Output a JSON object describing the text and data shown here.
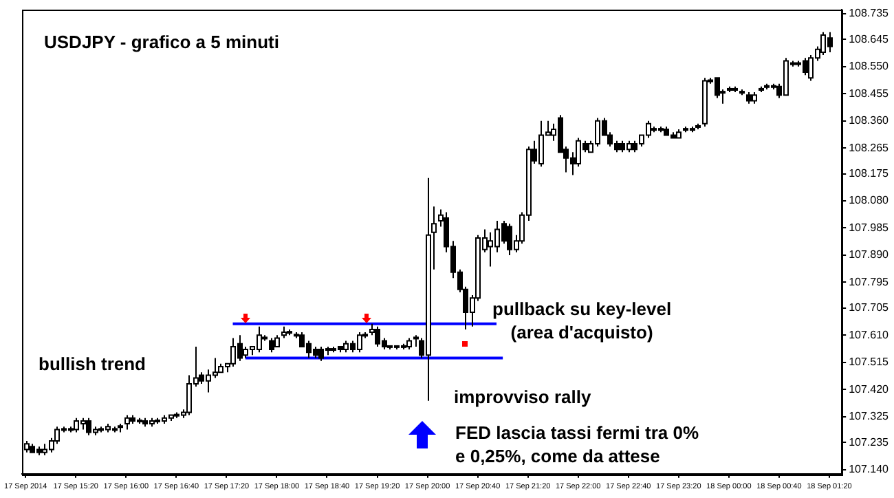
{
  "chart_data": {
    "type": "candlestick",
    "title": "USDJPY - grafico a 5 minuti",
    "annotations": [
      "bullish trend",
      "pullback su key-level\n(area d'acquisto)",
      "improvviso rally",
      "FED lascia tassi fermi tra 0%\ne 0,25%, come da attese"
    ],
    "x": [
      "2014-09-17T14:40",
      "2014-09-17T14:45",
      "2014-09-17T14:50",
      "2014-09-17T14:55",
      "2014-09-17T15:00",
      "2014-09-17T15:05",
      "2014-09-17T15:10",
      "2014-09-17T15:15",
      "2014-09-17T15:20",
      "2014-09-17T15:25",
      "2014-09-17T15:30",
      "2014-09-17T15:35",
      "2014-09-17T15:40",
      "2014-09-17T15:45",
      "2014-09-17T15:50",
      "2014-09-17T15:55",
      "2014-09-17T16:00",
      "2014-09-17T16:05",
      "2014-09-17T16:10",
      "2014-09-17T16:15",
      "2014-09-17T16:20",
      "2014-09-17T16:25",
      "2014-09-17T16:30",
      "2014-09-17T16:35",
      "2014-09-17T16:40",
      "2014-09-17T16:45",
      "2014-09-17T16:50",
      "2014-09-17T16:55",
      "2014-09-17T17:00",
      "2014-09-17T17:05",
      "2014-09-17T17:10",
      "2014-09-17T17:15",
      "2014-09-17T17:20",
      "2014-09-17T17:25",
      "2014-09-17T17:30",
      "2014-09-17T17:35",
      "2014-09-17T17:40",
      "2014-09-17T17:45",
      "2014-09-17T17:50",
      "2014-09-17T17:55",
      "2014-09-17T18:00",
      "2014-09-17T18:05",
      "2014-09-17T18:10",
      "2014-09-17T18:15",
      "2014-09-17T18:20",
      "2014-09-17T18:25",
      "2014-09-17T18:30",
      "2014-09-17T18:35",
      "2014-09-17T18:40",
      "2014-09-17T18:45",
      "2014-09-17T18:50",
      "2014-09-17T18:55",
      "2014-09-17T19:00",
      "2014-09-17T19:05",
      "2014-09-17T19:10",
      "2014-09-17T19:15",
      "2014-09-17T19:20",
      "2014-09-17T19:25",
      "2014-09-17T19:30",
      "2014-09-17T19:35",
      "2014-09-17T19:40",
      "2014-09-17T19:45",
      "2014-09-17T19:50",
      "2014-09-17T19:55",
      "2014-09-17T20:00",
      "2014-09-17T20:05",
      "2014-09-17T20:10",
      "2014-09-17T20:15",
      "2014-09-17T20:20",
      "2014-09-17T20:25",
      "2014-09-17T20:30",
      "2014-09-17T20:35",
      "2014-09-17T20:40",
      "2014-09-17T20:45",
      "2014-09-17T20:50",
      "2014-09-17T20:55",
      "2014-09-17T21:00",
      "2014-09-17T21:05",
      "2014-09-17T21:10",
      "2014-09-17T21:15",
      "2014-09-17T21:20",
      "2014-09-17T21:25",
      "2014-09-17T21:30",
      "2014-09-17T21:35",
      "2014-09-17T21:40",
      "2014-09-17T21:45",
      "2014-09-17T21:50",
      "2014-09-17T21:55",
      "2014-09-17T22:00",
      "2014-09-17T22:05",
      "2014-09-17T22:10",
      "2014-09-17T22:15",
      "2014-09-17T22:20",
      "2014-09-17T22:25",
      "2014-09-17T22:30",
      "2014-09-17T22:35",
      "2014-09-17T22:40",
      "2014-09-17T22:45",
      "2014-09-17T22:50",
      "2014-09-17T22:55",
      "2014-09-17T23:00",
      "2014-09-17T23:05",
      "2014-09-17T23:10",
      "2014-09-17T23:15",
      "2014-09-17T23:20",
      "2014-09-17T23:25",
      "2014-09-17T23:30",
      "2014-09-17T23:35",
      "2014-09-17T23:40",
      "2014-09-17T23:45",
      "2014-09-17T23:50",
      "2014-09-17T23:55",
      "2014-09-18T00:00",
      "2014-09-18T00:05",
      "2014-09-18T00:10",
      "2014-09-18T00:15",
      "2014-09-18T00:20",
      "2014-09-18T00:25",
      "2014-09-18T00:30",
      "2014-09-18T00:35",
      "2014-09-18T00:40",
      "2014-09-18T00:45",
      "2014-09-18T00:50",
      "2014-09-18T00:55",
      "2014-09-18T01:00",
      "2014-09-18T01:05",
      "2014-09-18T01:10",
      "2014-09-18T01:15",
      "2014-09-18T01:20"
    ],
    "ohlc": [
      [
        107.21,
        107.24,
        107.2,
        107.23
      ],
      [
        107.22,
        107.23,
        107.2,
        107.2
      ],
      [
        107.21,
        107.22,
        107.19,
        107.2
      ],
      [
        107.2,
        107.23,
        107.19,
        107.21
      ],
      [
        107.21,
        107.25,
        107.2,
        107.24
      ],
      [
        107.24,
        107.29,
        107.23,
        107.28
      ],
      [
        107.28,
        107.29,
        107.27,
        107.28
      ],
      [
        107.28,
        107.29,
        107.27,
        107.28
      ],
      [
        107.28,
        107.32,
        107.27,
        107.31
      ],
      [
        107.3,
        107.32,
        107.28,
        107.31
      ],
      [
        107.31,
        107.32,
        107.26,
        107.27
      ],
      [
        107.27,
        107.29,
        107.26,
        107.28
      ],
      [
        107.28,
        107.29,
        107.27,
        107.28
      ],
      [
        107.28,
        107.3,
        107.27,
        107.29
      ],
      [
        107.28,
        107.29,
        107.27,
        107.28
      ],
      [
        107.29,
        107.3,
        107.27,
        107.29
      ],
      [
        107.3,
        107.33,
        107.28,
        107.32
      ],
      [
        107.32,
        107.33,
        107.3,
        107.31
      ],
      [
        107.31,
        107.32,
        107.3,
        107.31
      ],
      [
        107.31,
        107.32,
        107.29,
        107.3
      ],
      [
        107.3,
        107.32,
        107.29,
        107.31
      ],
      [
        107.31,
        107.32,
        107.3,
        107.31
      ],
      [
        107.31,
        107.33,
        107.3,
        107.32
      ],
      [
        107.32,
        107.33,
        107.31,
        107.33
      ],
      [
        107.33,
        107.34,
        107.32,
        107.33
      ],
      [
        107.33,
        107.35,
        107.32,
        107.34
      ],
      [
        107.34,
        107.47,
        107.33,
        107.44
      ],
      [
        107.44,
        107.57,
        107.43,
        107.46
      ],
      [
        107.47,
        107.48,
        107.44,
        107.45
      ],
      [
        107.45,
        107.49,
        107.41,
        107.47
      ],
      [
        107.47,
        107.53,
        107.46,
        107.48
      ],
      [
        107.48,
        107.51,
        107.48,
        107.5
      ],
      [
        107.5,
        107.51,
        107.48,
        107.51
      ],
      [
        107.51,
        107.6,
        107.5,
        107.57
      ],
      [
        107.58,
        107.61,
        107.52,
        107.53
      ],
      [
        107.54,
        107.57,
        107.53,
        107.56
      ],
      [
        107.56,
        107.57,
        107.54,
        107.57
      ],
      [
        107.56,
        107.64,
        107.55,
        107.61
      ],
      [
        107.6,
        107.61,
        107.59,
        107.6
      ],
      [
        107.59,
        107.6,
        107.55,
        107.56
      ],
      [
        107.57,
        107.61,
        107.57,
        107.6
      ],
      [
        107.61,
        107.64,
        107.6,
        107.62
      ],
      [
        107.62,
        107.63,
        107.61,
        107.62
      ],
      [
        107.61,
        107.62,
        107.6,
        107.61
      ],
      [
        107.61,
        107.62,
        107.57,
        107.57
      ],
      [
        107.58,
        107.59,
        107.53,
        107.55
      ],
      [
        107.56,
        107.57,
        107.53,
        107.54
      ],
      [
        107.56,
        107.57,
        107.52,
        107.53
      ],
      [
        107.56,
        107.57,
        107.54,
        107.56
      ],
      [
        107.56,
        107.57,
        107.55,
        107.56
      ],
      [
        107.57,
        107.57,
        107.55,
        107.56
      ],
      [
        107.56,
        107.59,
        107.55,
        107.58
      ],
      [
        107.58,
        107.59,
        107.55,
        107.56
      ],
      [
        107.56,
        107.62,
        107.55,
        107.61
      ],
      [
        107.61,
        107.62,
        107.6,
        107.61
      ],
      [
        107.62,
        107.65,
        107.61,
        107.63
      ],
      [
        107.63,
        107.64,
        107.57,
        107.58
      ],
      [
        107.59,
        107.6,
        107.56,
        107.57
      ],
      [
        107.57,
        107.57,
        107.56,
        107.57
      ],
      [
        107.57,
        107.57,
        107.56,
        107.57
      ],
      [
        107.57,
        107.58,
        107.56,
        107.57
      ],
      [
        107.57,
        107.6,
        107.56,
        107.59
      ],
      [
        107.6,
        107.61,
        107.57,
        107.6
      ],
      [
        107.59,
        107.6,
        107.53,
        107.54
      ],
      [
        107.54,
        108.16,
        107.38,
        107.96
      ],
      [
        107.97,
        108.06,
        107.84,
        108.0
      ],
      [
        108.01,
        108.05,
        107.99,
        108.03
      ],
      [
        108.02,
        108.04,
        107.9,
        107.92
      ],
      [
        107.92,
        107.94,
        107.81,
        107.83
      ],
      [
        107.83,
        107.84,
        107.76,
        107.77
      ],
      [
        107.77,
        107.78,
        107.63,
        107.69
      ],
      [
        107.69,
        107.75,
        107.64,
        107.74
      ],
      [
        107.74,
        107.96,
        107.73,
        107.95
      ],
      [
        107.91,
        107.98,
        107.9,
        107.95
      ],
      [
        107.92,
        107.97,
        107.85,
        107.94
      ],
      [
        107.92,
        108.01,
        107.9,
        107.98
      ],
      [
        108.0,
        108.01,
        107.93,
        107.94
      ],
      [
        107.99,
        108.0,
        107.89,
        107.91
      ],
      [
        107.91,
        107.96,
        107.9,
        107.94
      ],
      [
        107.94,
        108.04,
        107.93,
        108.03
      ],
      [
        108.03,
        108.27,
        108.01,
        108.26
      ],
      [
        108.26,
        108.29,
        108.21,
        108.22
      ],
      [
        108.21,
        108.36,
        108.2,
        108.31
      ],
      [
        108.31,
        108.36,
        108.31,
        108.32
      ],
      [
        108.31,
        108.35,
        108.29,
        108.33
      ],
      [
        108.37,
        108.38,
        108.25,
        108.25
      ],
      [
        108.26,
        108.27,
        108.18,
        108.23
      ],
      [
        108.23,
        108.25,
        108.17,
        108.21
      ],
      [
        108.21,
        108.3,
        108.2,
        108.29
      ],
      [
        108.28,
        108.29,
        108.25,
        108.26
      ],
      [
        108.25,
        108.29,
        108.25,
        108.28
      ],
      [
        108.28,
        108.37,
        108.27,
        108.36
      ],
      [
        108.36,
        108.37,
        108.31,
        108.31
      ],
      [
        108.31,
        108.32,
        108.27,
        108.28
      ],
      [
        108.28,
        108.29,
        108.25,
        108.26
      ],
      [
        108.28,
        108.29,
        108.25,
        108.26
      ],
      [
        108.26,
        108.29,
        108.25,
        108.28
      ],
      [
        108.28,
        108.29,
        108.25,
        108.26
      ],
      [
        108.28,
        108.31,
        108.27,
        108.31
      ],
      [
        108.31,
        108.36,
        108.3,
        108.35
      ],
      [
        108.33,
        108.34,
        108.32,
        108.33
      ],
      [
        108.33,
        108.34,
        108.32,
        108.33
      ],
      [
        108.33,
        108.34,
        108.31,
        108.31
      ],
      [
        108.31,
        108.32,
        108.3,
        108.3
      ],
      [
        108.3,
        108.33,
        108.3,
        108.32
      ],
      [
        108.33,
        108.34,
        108.32,
        108.33
      ],
      [
        108.33,
        108.34,
        108.32,
        108.33
      ],
      [
        108.34,
        108.35,
        108.33,
        108.34
      ],
      [
        108.35,
        108.51,
        108.34,
        108.5
      ],
      [
        108.5,
        108.51,
        108.49,
        108.5
      ],
      [
        108.51,
        108.51,
        108.44,
        108.45
      ],
      [
        108.46,
        108.47,
        108.42,
        108.46
      ],
      [
        108.47,
        108.48,
        108.46,
        108.47
      ],
      [
        108.47,
        108.48,
        108.46,
        108.47
      ],
      [
        108.46,
        108.47,
        108.45,
        108.46
      ],
      [
        108.45,
        108.46,
        108.42,
        108.43
      ],
      [
        108.43,
        108.46,
        108.42,
        108.45
      ],
      [
        108.47,
        108.48,
        108.46,
        108.47
      ],
      [
        108.48,
        108.49,
        108.47,
        108.48
      ],
      [
        108.48,
        108.49,
        108.47,
        108.48
      ],
      [
        108.48,
        108.49,
        108.44,
        108.45
      ],
      [
        108.45,
        108.58,
        108.45,
        108.57
      ],
      [
        108.56,
        108.57,
        108.55,
        108.56
      ],
      [
        108.56,
        108.57,
        108.55,
        108.56
      ],
      [
        108.57,
        108.58,
        108.52,
        108.53
      ],
      [
        108.51,
        108.59,
        108.5,
        108.58
      ],
      [
        108.58,
        108.62,
        108.57,
        108.61
      ],
      [
        108.6,
        108.67,
        108.59,
        108.66
      ],
      [
        108.65,
        108.67,
        108.6,
        108.62
      ]
    ],
    "series": [
      {
        "type": "line",
        "x": [
          "2014-09-17T17:25",
          "2014-09-17T20:55"
        ],
        "values": [
          107.65,
          107.65
        ],
        "color": "#0000ff"
      },
      {
        "type": "line",
        "x": [
          "2014-09-17T17:35",
          "2014-09-17T21:00"
        ],
        "values": [
          107.53,
          107.53
        ],
        "color": "#0000ff"
      }
    ],
    "xlim": [
      "2014-09-17T14:37",
      "2014-09-18T01:30"
    ],
    "xticks": [
      {
        "value": "2014-09-17T14:40",
        "label": "17 Sep 2014"
      },
      {
        "value": "2014-09-17T15:20",
        "label": "17 Sep 15:20"
      },
      {
        "value": "2014-09-17T16:00",
        "label": "17 Sep 16:00"
      },
      {
        "value": "2014-09-17T16:40",
        "label": "17 Sep 16:40"
      },
      {
        "value": "2014-09-17T17:20",
        "label": "17 Sep 17:20"
      },
      {
        "value": "2014-09-17T18:00",
        "label": "17 Sep 18:00"
      },
      {
        "value": "2014-09-17T18:40",
        "label": "17 Sep 18:40"
      },
      {
        "value": "2014-09-17T19:20",
        "label": "17 Sep 19:20"
      },
      {
        "value": "2014-09-17T20:00",
        "label": "17 Sep 20:00"
      },
      {
        "value": "2014-09-17T20:40",
        "label": "17 Sep 20:40"
      },
      {
        "value": "2014-09-17T21:20",
        "label": "17 Sep 21:20"
      },
      {
        "value": "2014-09-17T22:00",
        "label": "17 Sep 22:00"
      },
      {
        "value": "2014-09-17T22:40",
        "label": "17 Sep 22:40"
      },
      {
        "value": "2014-09-17T23:20",
        "label": "17 Sep 23:20"
      },
      {
        "value": "2014-09-18T00:00",
        "label": "18 Sep 00:00"
      },
      {
        "value": "2014-09-18T00:40",
        "label": "18 Sep 00:40"
      },
      {
        "value": "2014-09-18T01:20",
        "label": "18 Sep 01:20"
      }
    ],
    "ylim": [
      107.125,
      108.75
    ],
    "yticks": [
      108.735,
      108.645,
      {
        "value": 108.55,
        "label": "108.550"
      },
      108.455,
      {
        "value": 108.36,
        "label": "108.360"
      },
      108.265,
      108.175,
      {
        "value": 108.08,
        "label": "108.080"
      },
      107.985,
      {
        "value": 107.89,
        "label": "107.890"
      },
      107.795,
      107.705,
      {
        "value": 107.61,
        "label": "107.610"
      },
      107.515,
      {
        "value": 107.42,
        "label": "107.420"
      },
      107.325,
      107.235,
      {
        "value": 107.14,
        "label": "107.140"
      }
    ]
  }
}
